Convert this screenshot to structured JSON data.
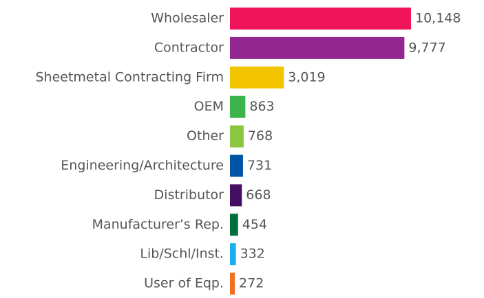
{
  "chart_data": {
    "type": "barh",
    "categories": [
      "Wholesaler",
      "Contractor",
      "Sheetmetal Contracting Firm",
      "OEM",
      "Other",
      "Engineering/Architecture",
      "Distributor",
      "Manufacturer’s Rep.",
      "Lib/Schl/Inst.",
      "User of Eqp."
    ],
    "values": [
      10148,
      9777,
      3019,
      863,
      768,
      731,
      668,
      454,
      332,
      272
    ],
    "value_labels": [
      "10,148",
      "9,777",
      "3,019",
      "863",
      "768",
      "731",
      "668",
      "454",
      "332",
      "272"
    ],
    "colors": [
      "#f0145a",
      "#92278f",
      "#f2c500",
      "#3cb44b",
      "#8cc63f",
      "#0054a6",
      "#440e62",
      "#00703c",
      "#1ab0ee",
      "#f36f21"
    ]
  }
}
